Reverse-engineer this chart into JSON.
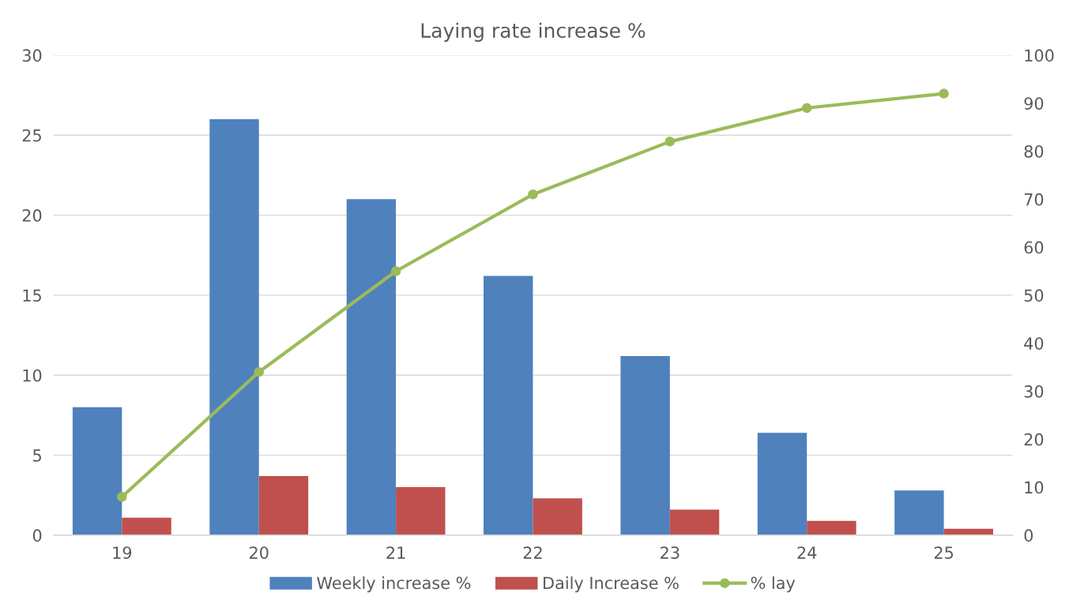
{
  "chart_data": {
    "type": "bar",
    "title": "Laying rate increase %",
    "categories": [
      "19",
      "20",
      "21",
      "22",
      "23",
      "24",
      "25"
    ],
    "series": [
      {
        "name": "Weekly increase %",
        "color": "#4f81bd",
        "values": [
          8.0,
          26.0,
          21.0,
          16.2,
          11.2,
          6.4,
          2.8
        ]
      },
      {
        "name": "Daily Increase %",
        "color": "#c0504d",
        "values": [
          1.1,
          3.7,
          3.0,
          2.3,
          1.6,
          0.9,
          0.4
        ]
      },
      {
        "name": "% lay",
        "color": "#9bbb59",
        "type": "line",
        "axis": "y2",
        "marker": "circle",
        "values": [
          8,
          34,
          55,
          71,
          82,
          89,
          92
        ]
      }
    ],
    "ylim": [
      0,
      30
    ],
    "yticks": [
      0,
      5,
      10,
      15,
      20,
      25,
      30
    ],
    "y2lim": [
      0,
      100
    ],
    "y2ticks": [
      0,
      10,
      20,
      30,
      40,
      50,
      60,
      70,
      80,
      90,
      100
    ],
    "grid": "y",
    "legend": "bottom"
  }
}
